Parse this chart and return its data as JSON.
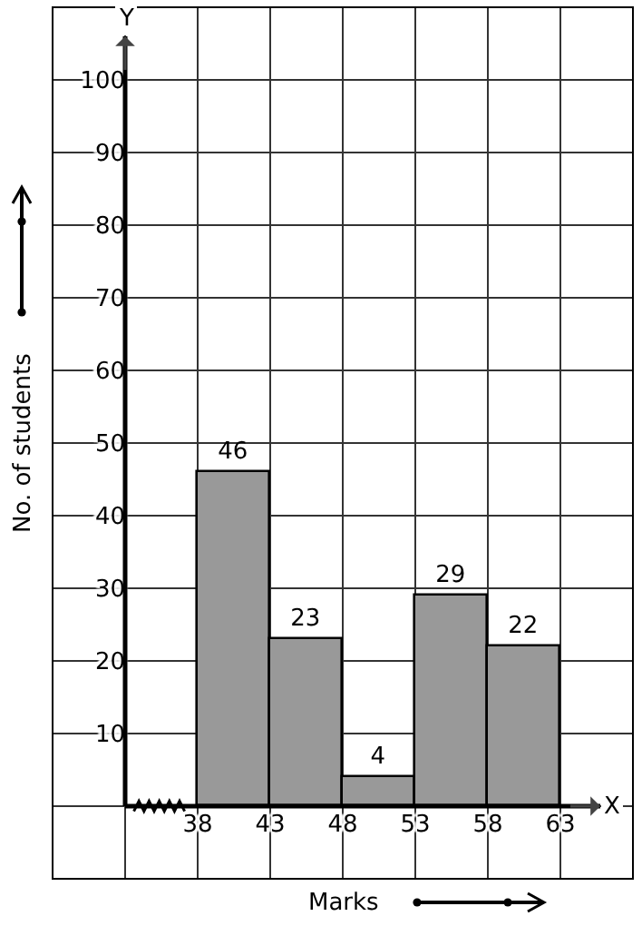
{
  "chart_data": {
    "type": "histogram",
    "xlabel": "Marks",
    "ylabel": "No. of students",
    "bins": [
      38,
      43,
      48,
      53,
      58,
      63
    ],
    "values": [
      46,
      23,
      4,
      29,
      22
    ],
    "color": "#999999",
    "xlim": [
      28,
      68
    ],
    "xticks": [
      38,
      43,
      48,
      53,
      58,
      63
    ],
    "ylim": [
      -10,
      110
    ],
    "yticks": [
      10,
      20,
      30,
      40,
      50,
      60,
      70,
      80,
      90,
      100
    ],
    "annotations": [
      "X",
      "Y"
    ],
    "grid": true,
    "data_labels": true
  }
}
